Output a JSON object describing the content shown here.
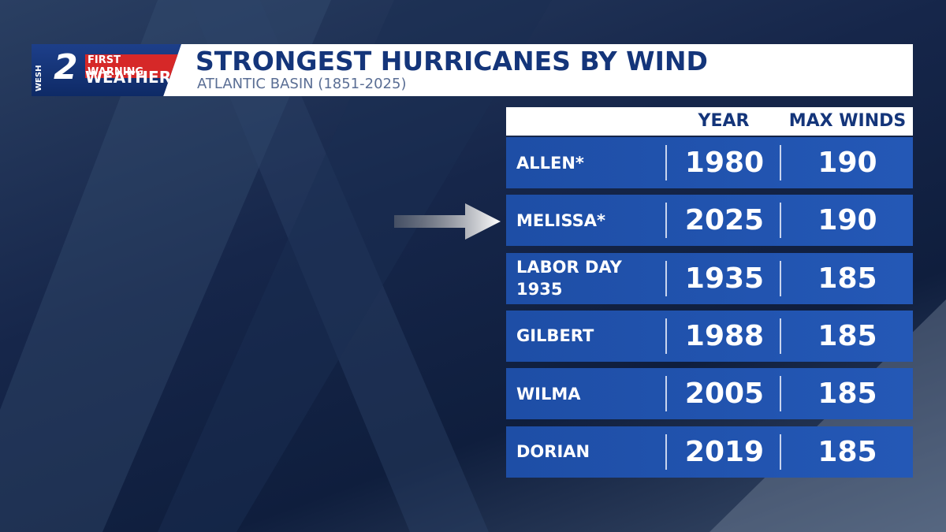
{
  "logo": {
    "top": "FIRST WARNING",
    "bottom": "WEATHER",
    "station": "WESH",
    "channel": "2"
  },
  "header": {
    "title": "STRONGEST HURRICANES BY WIND",
    "subtitle": "ATLANTIC BASIN (1851-2025)"
  },
  "table": {
    "columns": [
      "YEAR",
      "MAX WINDS"
    ],
    "rows": [
      [
        "ALLEN*",
        1980,
        190
      ],
      [
        "MELISSA*",
        2025,
        190
      ],
      [
        "LABOR DAY 1935",
        1935,
        185
      ],
      [
        "GILBERT",
        1988,
        185
      ],
      [
        "WILMA",
        2005,
        185
      ],
      [
        "DORIAN",
        2019,
        185
      ]
    ]
  }
}
